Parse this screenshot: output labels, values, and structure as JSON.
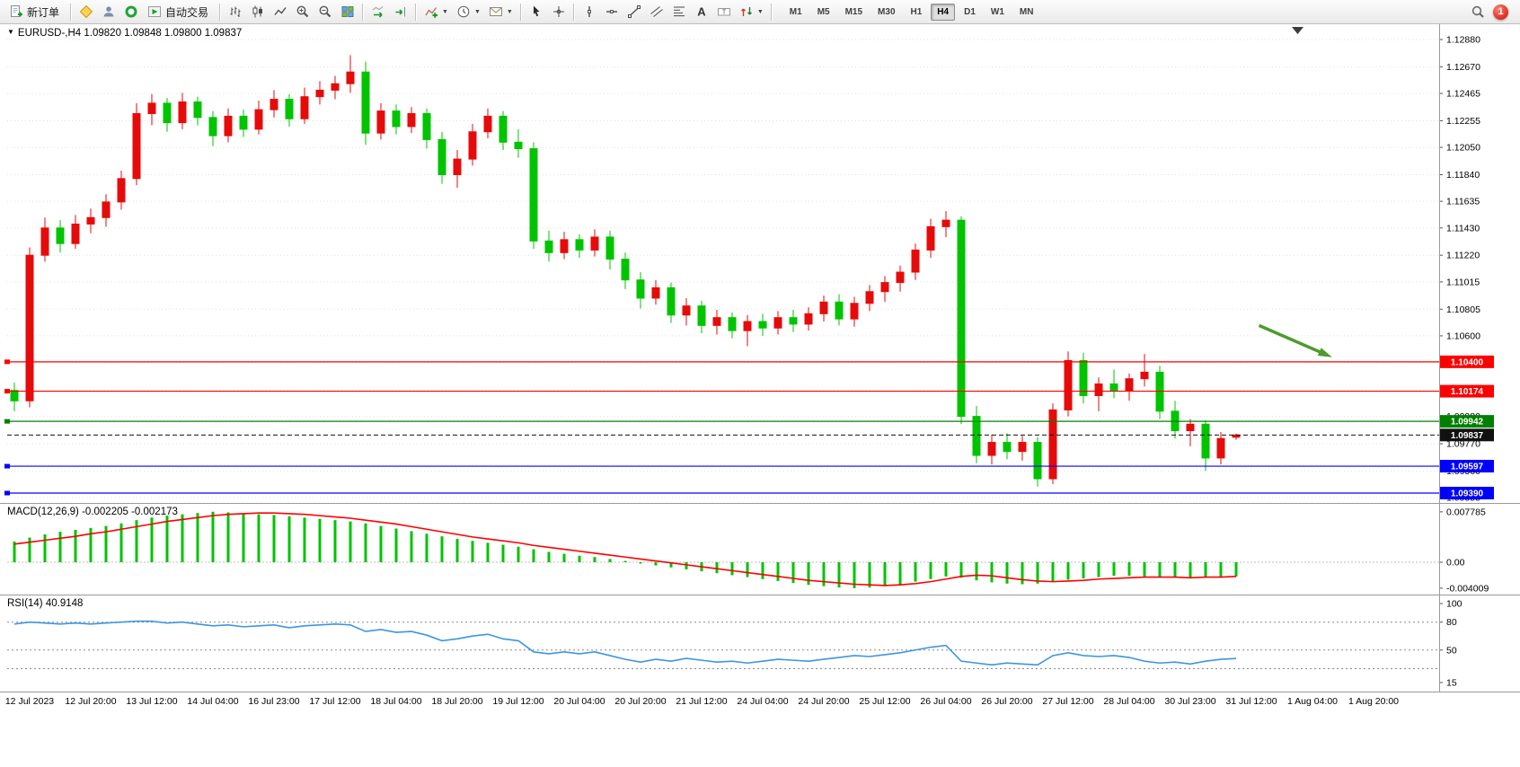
{
  "toolbar": {
    "new_order": "新订单",
    "autotrading": "自动交易",
    "timeframes": [
      "M1",
      "M5",
      "M15",
      "M30",
      "H1",
      "H4",
      "D1",
      "W1",
      "MN"
    ],
    "active_timeframe": "H4",
    "notification_count": "1",
    "icons": [
      "new-order-icon",
      "metaeditor-icon",
      "profile-icon",
      "support-icon",
      "autotrading-icon",
      "bar-chart-icon",
      "candlestick-chart-icon",
      "line-chart-icon",
      "zoom-in-icon",
      "zoom-out-icon",
      "tile-windows-icon",
      "auto-scroll-icon",
      "chart-shift-icon",
      "indicators-icon",
      "periods-icon",
      "templates-icon",
      "cursor-icon",
      "crosshair-icon",
      "vertical-line-icon",
      "horizontal-line-icon",
      "trendline-icon",
      "equidistant-channel-icon",
      "fibonacci-icon",
      "text-icon",
      "text-label-icon",
      "arrows-icon",
      "search-icon"
    ]
  },
  "chart": {
    "title": "EURUSD-,H4 1.09820 1.09848 1.09800 1.09837",
    "macd_title": "MACD(12,26,9)",
    "macd_values": "-0.002205 -0.002173",
    "rsi_title": "RSI(14)",
    "rsi_value": "40.9148"
  },
  "chart_data": [
    {
      "type": "candlestick",
      "symbol": "EURUSD-",
      "timeframe": "H4",
      "current_bar": {
        "open": "1.09820",
        "high": "1.09848",
        "low": "1.09800",
        "close": "1.09837"
      },
      "ylim": [
        1.0932,
        1.1299
      ],
      "colors": {
        "up": "#e60b0b",
        "down": "#00c400"
      },
      "y_ticks": [
        "1.12880",
        "1.12670",
        "1.12465",
        "1.12255",
        "1.12050",
        "1.11840",
        "1.11635",
        "1.11430",
        "1.11220",
        "1.11015",
        "1.10805",
        "1.10600",
        "1.10395",
        "1.10185",
        "1.09980",
        "1.09770",
        "1.09560",
        "1.09355"
      ],
      "x_labels": [
        "12 Jul 2023",
        "12 Jul 20:00",
        "13 Jul 12:00",
        "14 Jul 04:00",
        "16 Jul 23:00",
        "17 Jul 12:00",
        "18 Jul 04:00",
        "18 Jul 20:00",
        "19 Jul 12:00",
        "20 Jul 04:00",
        "20 Jul 20:00",
        "21 Jul 12:00",
        "24 Jul 04:00",
        "24 Jul 20:00",
        "25 Jul 12:00",
        "26 Jul 04:00",
        "26 Jul 20:00",
        "27 Jul 12:00",
        "28 Jul 04:00",
        "30 Jul 23:00",
        "31 Jul 12:00",
        "1 Aug 04:00",
        "1 Aug 20:00"
      ],
      "levels": [
        {
          "name": "resistance-line-1",
          "price": 1.104,
          "label": "1.10400",
          "color": "#ff0000",
          "style": "solid",
          "handle": true
        },
        {
          "name": "resistance-line-2",
          "price": 1.10174,
          "label": "1.10174",
          "color": "#ff0000",
          "style": "solid",
          "handle": true
        },
        {
          "name": "support-line-green",
          "price": 1.09942,
          "label": "1.09942",
          "color": "#008000",
          "style": "solid",
          "handle": true
        },
        {
          "name": "bid-price-line",
          "price": 1.09837,
          "label": "1.09837",
          "color": "#111111",
          "style": "dashed",
          "handle": false
        },
        {
          "name": "support-line-blue-1",
          "price": 1.09597,
          "label": "1.09597",
          "color": "#0000ff",
          "style": "solid",
          "handle": true
        },
        {
          "name": "support-line-blue-2",
          "price": 1.0939,
          "label": "1.09390",
          "color": "#0000ff",
          "style": "solid",
          "handle": true
        }
      ],
      "arrow": {
        "from_bar": 81.5,
        "from_price": 1.1068,
        "to_bar": 85.8,
        "to_price": 1.1046,
        "color": "#4e9b2d"
      },
      "candles": [
        [
          1.1018,
          1.1024,
          1.1002,
          1.101
        ],
        [
          1.101,
          1.1128,
          1.1005,
          1.1122
        ],
        [
          1.1122,
          1.1151,
          1.1117,
          1.1143
        ],
        [
          1.1143,
          1.1149,
          1.1124,
          1.1131
        ],
        [
          1.1131,
          1.1153,
          1.1127,
          1.1146
        ],
        [
          1.1146,
          1.1158,
          1.1139,
          1.1151
        ],
        [
          1.1151,
          1.1169,
          1.1144,
          1.1163
        ],
        [
          1.1163,
          1.1187,
          1.1157,
          1.1181
        ],
        [
          1.1181,
          1.1239,
          1.1176,
          1.1231
        ],
        [
          1.1231,
          1.1246,
          1.1222,
          1.1239
        ],
        [
          1.1239,
          1.1243,
          1.1217,
          1.1224
        ],
        [
          1.1224,
          1.1247,
          1.1219,
          1.124
        ],
        [
          1.124,
          1.1244,
          1.1222,
          1.1228
        ],
        [
          1.1228,
          1.1233,
          1.1206,
          1.1214
        ],
        [
          1.1214,
          1.1235,
          1.1209,
          1.1229
        ],
        [
          1.1229,
          1.1234,
          1.1213,
          1.1219
        ],
        [
          1.1219,
          1.1241,
          1.1215,
          1.1234
        ],
        [
          1.1234,
          1.1249,
          1.1228,
          1.1242
        ],
        [
          1.1242,
          1.1246,
          1.1221,
          1.1227
        ],
        [
          1.1227,
          1.1251,
          1.1223,
          1.1244
        ],
        [
          1.1244,
          1.1256,
          1.1238,
          1.1249
        ],
        [
          1.1249,
          1.126,
          1.1242,
          1.1254
        ],
        [
          1.1254,
          1.1276,
          1.1247,
          1.1263
        ],
        [
          1.1263,
          1.1271,
          1.1207,
          1.1216
        ],
        [
          1.1216,
          1.1239,
          1.1211,
          1.1233
        ],
        [
          1.1233,
          1.1238,
          1.1215,
          1.1221
        ],
        [
          1.1221,
          1.1236,
          1.1216,
          1.1231
        ],
        [
          1.1231,
          1.1235,
          1.1204,
          1.1211
        ],
        [
          1.1211,
          1.1217,
          1.1177,
          1.1184
        ],
        [
          1.1184,
          1.1203,
          1.1174,
          1.1196
        ],
        [
          1.1196,
          1.1223,
          1.1191,
          1.1217
        ],
        [
          1.1217,
          1.1235,
          1.1212,
          1.1229
        ],
        [
          1.1229,
          1.1233,
          1.1203,
          1.1209
        ],
        [
          1.1209,
          1.1219,
          1.1197,
          1.1204
        ],
        [
          1.1204,
          1.1209,
          1.1127,
          1.1133
        ],
        [
          1.1133,
          1.1141,
          1.1117,
          1.1124
        ],
        [
          1.1124,
          1.114,
          1.1119,
          1.1134
        ],
        [
          1.1134,
          1.1138,
          1.112,
          1.1126
        ],
        [
          1.1126,
          1.1142,
          1.1121,
          1.1136
        ],
        [
          1.1136,
          1.1141,
          1.1111,
          1.1119
        ],
        [
          1.1119,
          1.1124,
          1.1096,
          1.1103
        ],
        [
          1.1103,
          1.1109,
          1.1081,
          1.1089
        ],
        [
          1.1089,
          1.1103,
          1.1084,
          1.1097
        ],
        [
          1.1097,
          1.1101,
          1.107,
          1.1076
        ],
        [
          1.1076,
          1.1089,
          1.1068,
          1.1083
        ],
        [
          1.1083,
          1.1087,
          1.1062,
          1.1068
        ],
        [
          1.1068,
          1.108,
          1.1061,
          1.1074
        ],
        [
          1.1074,
          1.1078,
          1.1058,
          1.1064
        ],
        [
          1.1064,
          1.1076,
          1.1052,
          1.1071
        ],
        [
          1.1071,
          1.1077,
          1.106,
          1.1066
        ],
        [
          1.1066,
          1.1079,
          1.1061,
          1.1074
        ],
        [
          1.1074,
          1.108,
          1.1063,
          1.1069
        ],
        [
          1.1069,
          1.1082,
          1.1064,
          1.1077
        ],
        [
          1.1077,
          1.1091,
          1.1071,
          1.1086
        ],
        [
          1.1086,
          1.1092,
          1.1068,
          1.1073
        ],
        [
          1.1073,
          1.109,
          1.1067,
          1.1085
        ],
        [
          1.1085,
          1.1099,
          1.1079,
          1.1094
        ],
        [
          1.1094,
          1.1106,
          1.1086,
          1.1101
        ],
        [
          1.1101,
          1.1114,
          1.1094,
          1.1109
        ],
        [
          1.1109,
          1.1131,
          1.1103,
          1.1126
        ],
        [
          1.1126,
          1.115,
          1.112,
          1.1144
        ],
        [
          1.1144,
          1.1156,
          1.1136,
          1.1149
        ],
        [
          1.1149,
          1.1152,
          1.0992,
          1.0998
        ],
        [
          1.0998,
          1.1006,
          1.0962,
          1.0968
        ],
        [
          1.0968,
          1.0984,
          1.0961,
          1.0978
        ],
        [
          1.0978,
          1.0985,
          1.0965,
          1.0971
        ],
        [
          1.0971,
          1.0983,
          1.0964,
          1.0978
        ],
        [
          1.0978,
          1.0982,
          1.0944,
          1.095
        ],
        [
          1.095,
          1.1008,
          1.0946,
          1.1003
        ],
        [
          1.1003,
          1.1048,
          1.0998,
          1.1041
        ],
        [
          1.1041,
          1.1047,
          1.1008,
          1.1014
        ],
        [
          1.1014,
          1.1028,
          1.1002,
          1.1023
        ],
        [
          1.1023,
          1.1034,
          1.1012,
          1.1018
        ],
        [
          1.1018,
          1.1031,
          1.101,
          1.1027
        ],
        [
          1.1027,
          1.1046,
          1.1021,
          1.1032
        ],
        [
          1.1032,
          1.1037,
          1.0996,
          1.1002
        ],
        [
          1.1002,
          1.101,
          1.0981,
          1.0987
        ],
        [
          1.0987,
          1.0996,
          1.0975,
          1.0992
        ],
        [
          1.0992,
          1.0995,
          1.0956,
          1.0966
        ],
        [
          1.0966,
          1.0986,
          1.0961,
          1.0981
        ],
        [
          1.0982,
          1.09848,
          1.098,
          1.09837
        ]
      ]
    },
    {
      "type": "bar",
      "name": "MACD(12,26,9)",
      "current_values": "-0.002205 -0.002173",
      "ylim": [
        -0.0048,
        0.0089
      ],
      "colors": {
        "histogram": "#00c400",
        "signal": "#ff0000"
      },
      "y_ticks": [
        {
          "v": 0.007785,
          "label": "0.007785"
        },
        {
          "v": 0,
          "label": "0.00"
        },
        {
          "v": -0.004009,
          "label": "-0.004009"
        }
      ],
      "histogram": [
        0.0032,
        0.0038,
        0.0043,
        0.0047,
        0.005,
        0.0053,
        0.0056,
        0.006,
        0.0065,
        0.0069,
        0.0072,
        0.0074,
        0.0076,
        0.0078,
        0.0077,
        0.0076,
        0.0074,
        0.0073,
        0.0071,
        0.0069,
        0.0067,
        0.0065,
        0.0063,
        0.006,
        0.0056,
        0.0052,
        0.0048,
        0.0044,
        0.004,
        0.0036,
        0.0033,
        0.003,
        0.0027,
        0.0024,
        0.002,
        0.0016,
        0.0013,
        0.001,
        0.0008,
        0.0005,
        0.0002,
        -0.0002,
        -0.0005,
        -0.0008,
        -0.0011,
        -0.0014,
        -0.0017,
        -0.002,
        -0.0023,
        -0.0026,
        -0.0029,
        -0.0032,
        -0.0035,
        -0.0037,
        -0.0039,
        -0.004,
        -0.0039,
        -0.0037,
        -0.0034,
        -0.003,
        -0.0026,
        -0.0022,
        -0.0024,
        -0.0028,
        -0.0031,
        -0.0033,
        -0.0034,
        -0.0033,
        -0.003,
        -0.0027,
        -0.0025,
        -0.0023,
        -0.0021,
        -0.0021,
        -0.0022,
        -0.0023,
        -0.0024,
        -0.0025,
        -0.0024,
        -0.0023,
        -0.0022
      ],
      "signal": [
        0.0028,
        0.0031,
        0.0034,
        0.0037,
        0.004,
        0.0044,
        0.0047,
        0.0051,
        0.0055,
        0.0059,
        0.0063,
        0.0066,
        0.0069,
        0.0072,
        0.0074,
        0.0075,
        0.0076,
        0.0076,
        0.0075,
        0.0074,
        0.0072,
        0.007,
        0.0068,
        0.0065,
        0.0062,
        0.0059,
        0.0055,
        0.0051,
        0.0047,
        0.0043,
        0.0039,
        0.0036,
        0.0033,
        0.003,
        0.0026,
        0.0023,
        0.002,
        0.0017,
        0.0014,
        0.0011,
        0.0008,
        0.0005,
        0.0002,
        -0.0001,
        -0.0004,
        -0.0007,
        -0.001,
        -0.0013,
        -0.0016,
        -0.0019,
        -0.0022,
        -0.0025,
        -0.0028,
        -0.003,
        -0.0032,
        -0.0034,
        -0.0035,
        -0.0036,
        -0.0035,
        -0.0033,
        -0.003,
        -0.0026,
        -0.0022,
        -0.002,
        -0.0021,
        -0.0024,
        -0.0027,
        -0.0029,
        -0.003,
        -0.0029,
        -0.0028,
        -0.0026,
        -0.0025,
        -0.0024,
        -0.0023,
        -0.0023,
        -0.0023,
        -0.0024,
        -0.0023,
        -0.0023,
        -0.0022
      ]
    },
    {
      "type": "line",
      "name": "RSI(14)",
      "current_value": "40.9148",
      "ylim": [
        8,
        105
      ],
      "color": "#3d96e0",
      "y_ticks": [
        {
          "v": 100,
          "label": "100"
        },
        {
          "v": 80,
          "label": "80"
        },
        {
          "v": 50,
          "label": "50"
        },
        {
          "v": 15,
          "label": "15"
        }
      ],
      "levels": [
        80,
        50,
        30
      ],
      "values": [
        78,
        80,
        79,
        78,
        79,
        78,
        79,
        80,
        81,
        81,
        79,
        80,
        78,
        76,
        77,
        75,
        76,
        77,
        74,
        76,
        77,
        78,
        77,
        70,
        72,
        69,
        70,
        66,
        60,
        62,
        65,
        67,
        62,
        60,
        48,
        46,
        48,
        46,
        48,
        44,
        40,
        37,
        40,
        38,
        41,
        39,
        37,
        38,
        36,
        38,
        40,
        39,
        38,
        40,
        42,
        44,
        43,
        45,
        47,
        50,
        53,
        55,
        38,
        36,
        34,
        36,
        35,
        34,
        44,
        47,
        44,
        43,
        44,
        42,
        38,
        36,
        37,
        35,
        38,
        40,
        40.9
      ]
    }
  ]
}
